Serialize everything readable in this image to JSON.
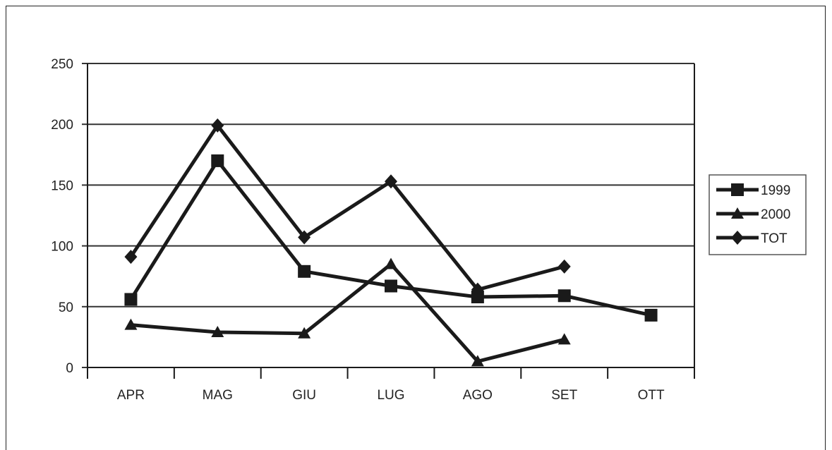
{
  "chart_data": {
    "type": "line",
    "categories": [
      "APR",
      "MAG",
      "GIU",
      "LUG",
      "AGO",
      "SET",
      "OTT"
    ],
    "ylim": [
      0,
      250
    ],
    "yticks": [
      0,
      50,
      100,
      150,
      200,
      250
    ],
    "grid": true,
    "legend_position": "right",
    "series": [
      {
        "name": "1999",
        "marker": "square",
        "values": [
          56,
          170,
          79,
          67,
          58,
          59,
          43
        ]
      },
      {
        "name": "2000",
        "marker": "triangle",
        "values": [
          35,
          29,
          28,
          85,
          5,
          23,
          null
        ]
      },
      {
        "name": "TOT",
        "marker": "diamond",
        "values": [
          91,
          199,
          107,
          153,
          64,
          83,
          null
        ]
      }
    ],
    "colors": {
      "line": "#1a1a1a",
      "grid": "#333333"
    }
  }
}
